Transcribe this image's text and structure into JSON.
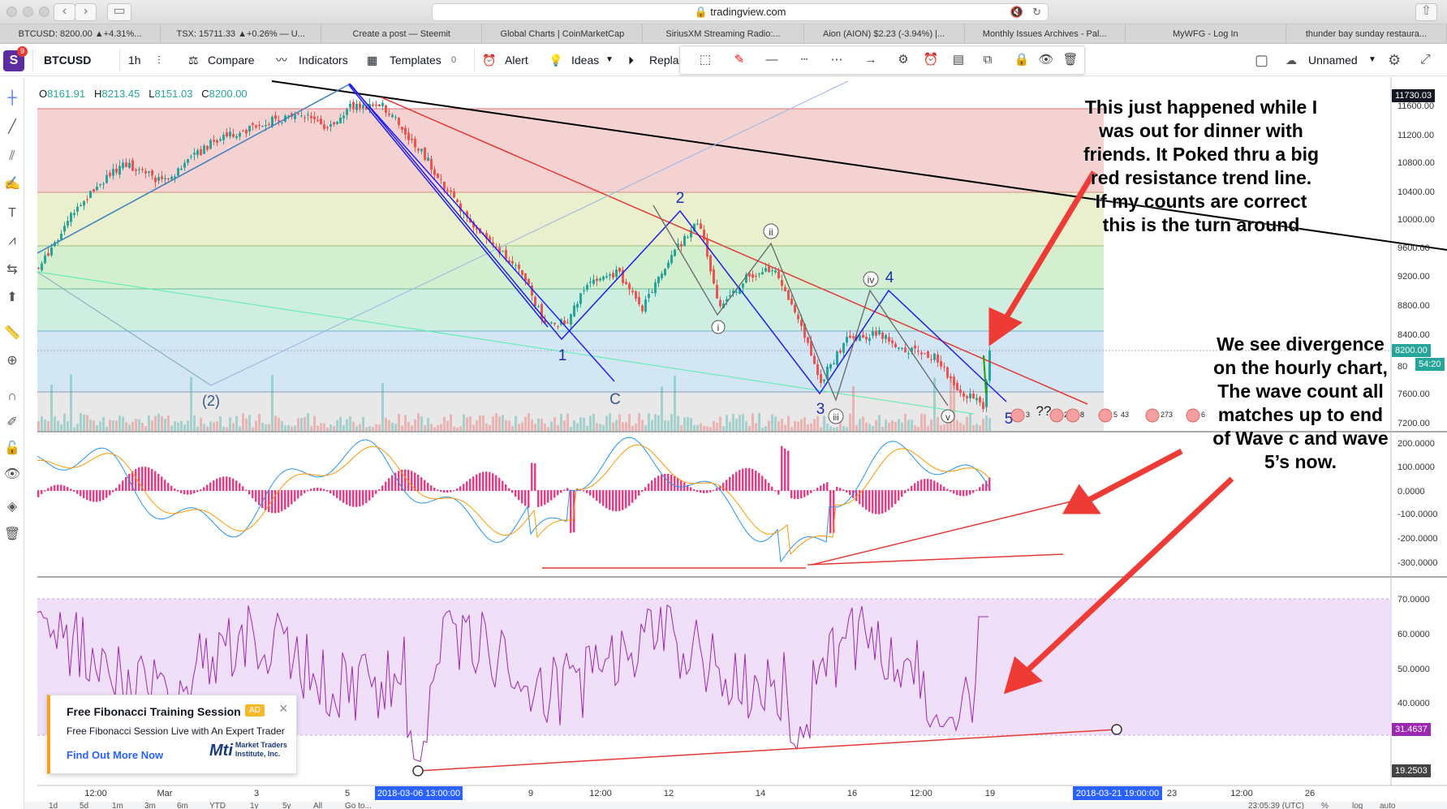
{
  "browser": {
    "url": "tradingview.com",
    "tabs": [
      "BTCUSD: 8200.00 ▲+4.31%...",
      "TSX: 15711.33 ▲+0.26% — U...",
      "Create a post — Steemit",
      "Global Charts | CoinMarketCap",
      "SiriusXM Streaming Radio:...",
      "Aion (AION) $2.23 (-3.94%) |...",
      "Monthly Issues Archives - Pal...",
      "MyWFG - Log In",
      "thunder bay sunday restaura..."
    ]
  },
  "header": {
    "logo": "S",
    "badge": "9",
    "symbol": "BTCUSD",
    "interval": "1h",
    "compare": "Compare",
    "indicators": "Indicators",
    "templates": "Templates",
    "templates_count": "0",
    "alert": "Alert",
    "ideas": "Ideas",
    "replay": "Repla",
    "layout_name": "Unnamed"
  },
  "ohlc": {
    "o_label": "O",
    "o": "8161.91",
    "h_label": "H",
    "h": "8213.45",
    "l_label": "L",
    "l": "8151.03",
    "c_label": "C",
    "c": "8200.00"
  },
  "price_axis": [
    "11600.00",
    "11200.00",
    "10800.00",
    "10400.00",
    "10000.00",
    "9600.00",
    "9200.00",
    "8800.00",
    "8400.00",
    "80",
    "7600.00",
    "7200.00"
  ],
  "price_tags": {
    "top": "11730.03",
    "current": "8200.00",
    "countdown": "54:20"
  },
  "macd_axis": [
    "200.0000",
    "100.0000",
    "0.0000",
    "-100.0000",
    "-200.0000",
    "-300.0000"
  ],
  "rsi_axis": [
    "70.0000",
    "60.0000",
    "50.0000",
    "40.0000"
  ],
  "rsi_tags": {
    "a": "31.4637",
    "b": "19.2503"
  },
  "time_axis": [
    "12:00",
    "Mar",
    "3",
    "5",
    "9",
    "12:00",
    "12",
    "14",
    "16",
    "12:00",
    "19",
    "23",
    "12:00",
    "26"
  ],
  "time_tags": {
    "start": "2018-03-06 13:00:00",
    "end": "2018-03-21 19:00:00"
  },
  "clock": "23:05:39 (UTC)",
  "scale_opts": [
    "%",
    "log",
    "auto"
  ],
  "bottom_ranges": [
    "1d",
    "5d",
    "1m",
    "3m",
    "6m",
    "YTD",
    "1y",
    "5y",
    "All",
    "Go to..."
  ],
  "waves": {
    "w1": "1",
    "w2": "2",
    "w3": "3",
    "w4": "4",
    "w5": "5",
    "wC": "C",
    "w2p": "(2)",
    "wi": "i",
    "wii": "ii",
    "wiii": "iii",
    "wiv": "iv",
    "wv": "v",
    "qq": "??"
  },
  "event_badges": [
    "3",
    "2",
    "8",
    "5",
    "43",
    "27",
    "3",
    "6"
  ],
  "annotations": {
    "a1": [
      "This just happened while I",
      "was out for dinner with",
      "friends.  It Poked thru a big",
      "red resistance trend line.",
      "If my counts are correct",
      "this is the turn around"
    ],
    "a2": [
      "We see divergence",
      "on the hourly chart,",
      "The wave count all",
      "matches up to end",
      "of Wave c and wave",
      "5’s now."
    ]
  },
  "ad": {
    "title": "Free Fibonacci Training Session",
    "tag": "AD",
    "subtitle": "Free Fibonacci Session Live with An Expert Trader",
    "link": "Find Out More Now",
    "brand": "Market Traders Institute, Inc.",
    "brand_short": "Mti"
  },
  "colors": {
    "up": "#26a69a",
    "down": "#ef5350",
    "accent": "#2962ff",
    "annot_arrow": "#ef3b36"
  }
}
